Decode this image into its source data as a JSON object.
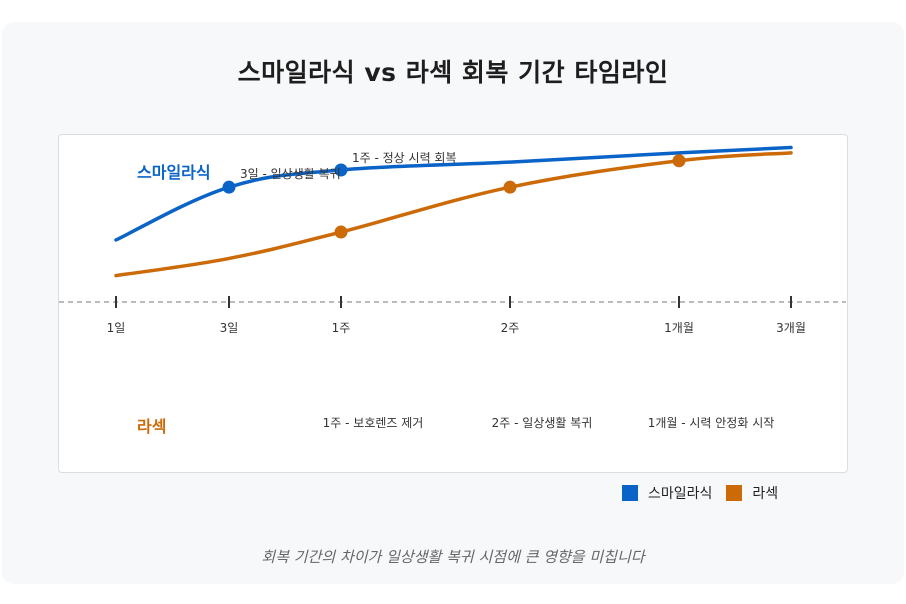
{
  "title": "스마일라식 vs 라섹 회복 기간 타임라인",
  "caption": "회복 기간의 차이가 일상생활 복귀 시점에 큰 영향을 미칩니다",
  "colors": {
    "smile": "#0a64c8",
    "lasek": "#cc6a08",
    "axis": "#bbbbbb"
  },
  "chart_data": {
    "type": "line",
    "categories": [
      "1일",
      "3일",
      "1주",
      "2주",
      "1개월",
      "3개월"
    ],
    "series": [
      {
        "name": "스마일라식",
        "label": "스마일라식",
        "values": [
          0.47,
          0.87,
          1.0,
          1.06,
          1.13,
          1.17
        ],
        "milestones": [
          {
            "index": 1,
            "text": "3일 - 일상생활 복귀"
          },
          {
            "index": 2,
            "text": "1주 - 정상 시력 회복"
          }
        ]
      },
      {
        "name": "라섹",
        "label": "라섹",
        "values": [
          0.2,
          0.33,
          0.53,
          0.87,
          1.07,
          1.13
        ],
        "milestones": [
          {
            "index": 2,
            "text": "1주 - 보호렌즈 제거"
          },
          {
            "index": 3,
            "text": "2주 - 일상생활 복귀"
          },
          {
            "index": 4,
            "text": "1개월 - 시력 안정화 시작"
          }
        ]
      }
    ],
    "legend": "bottom-right"
  }
}
